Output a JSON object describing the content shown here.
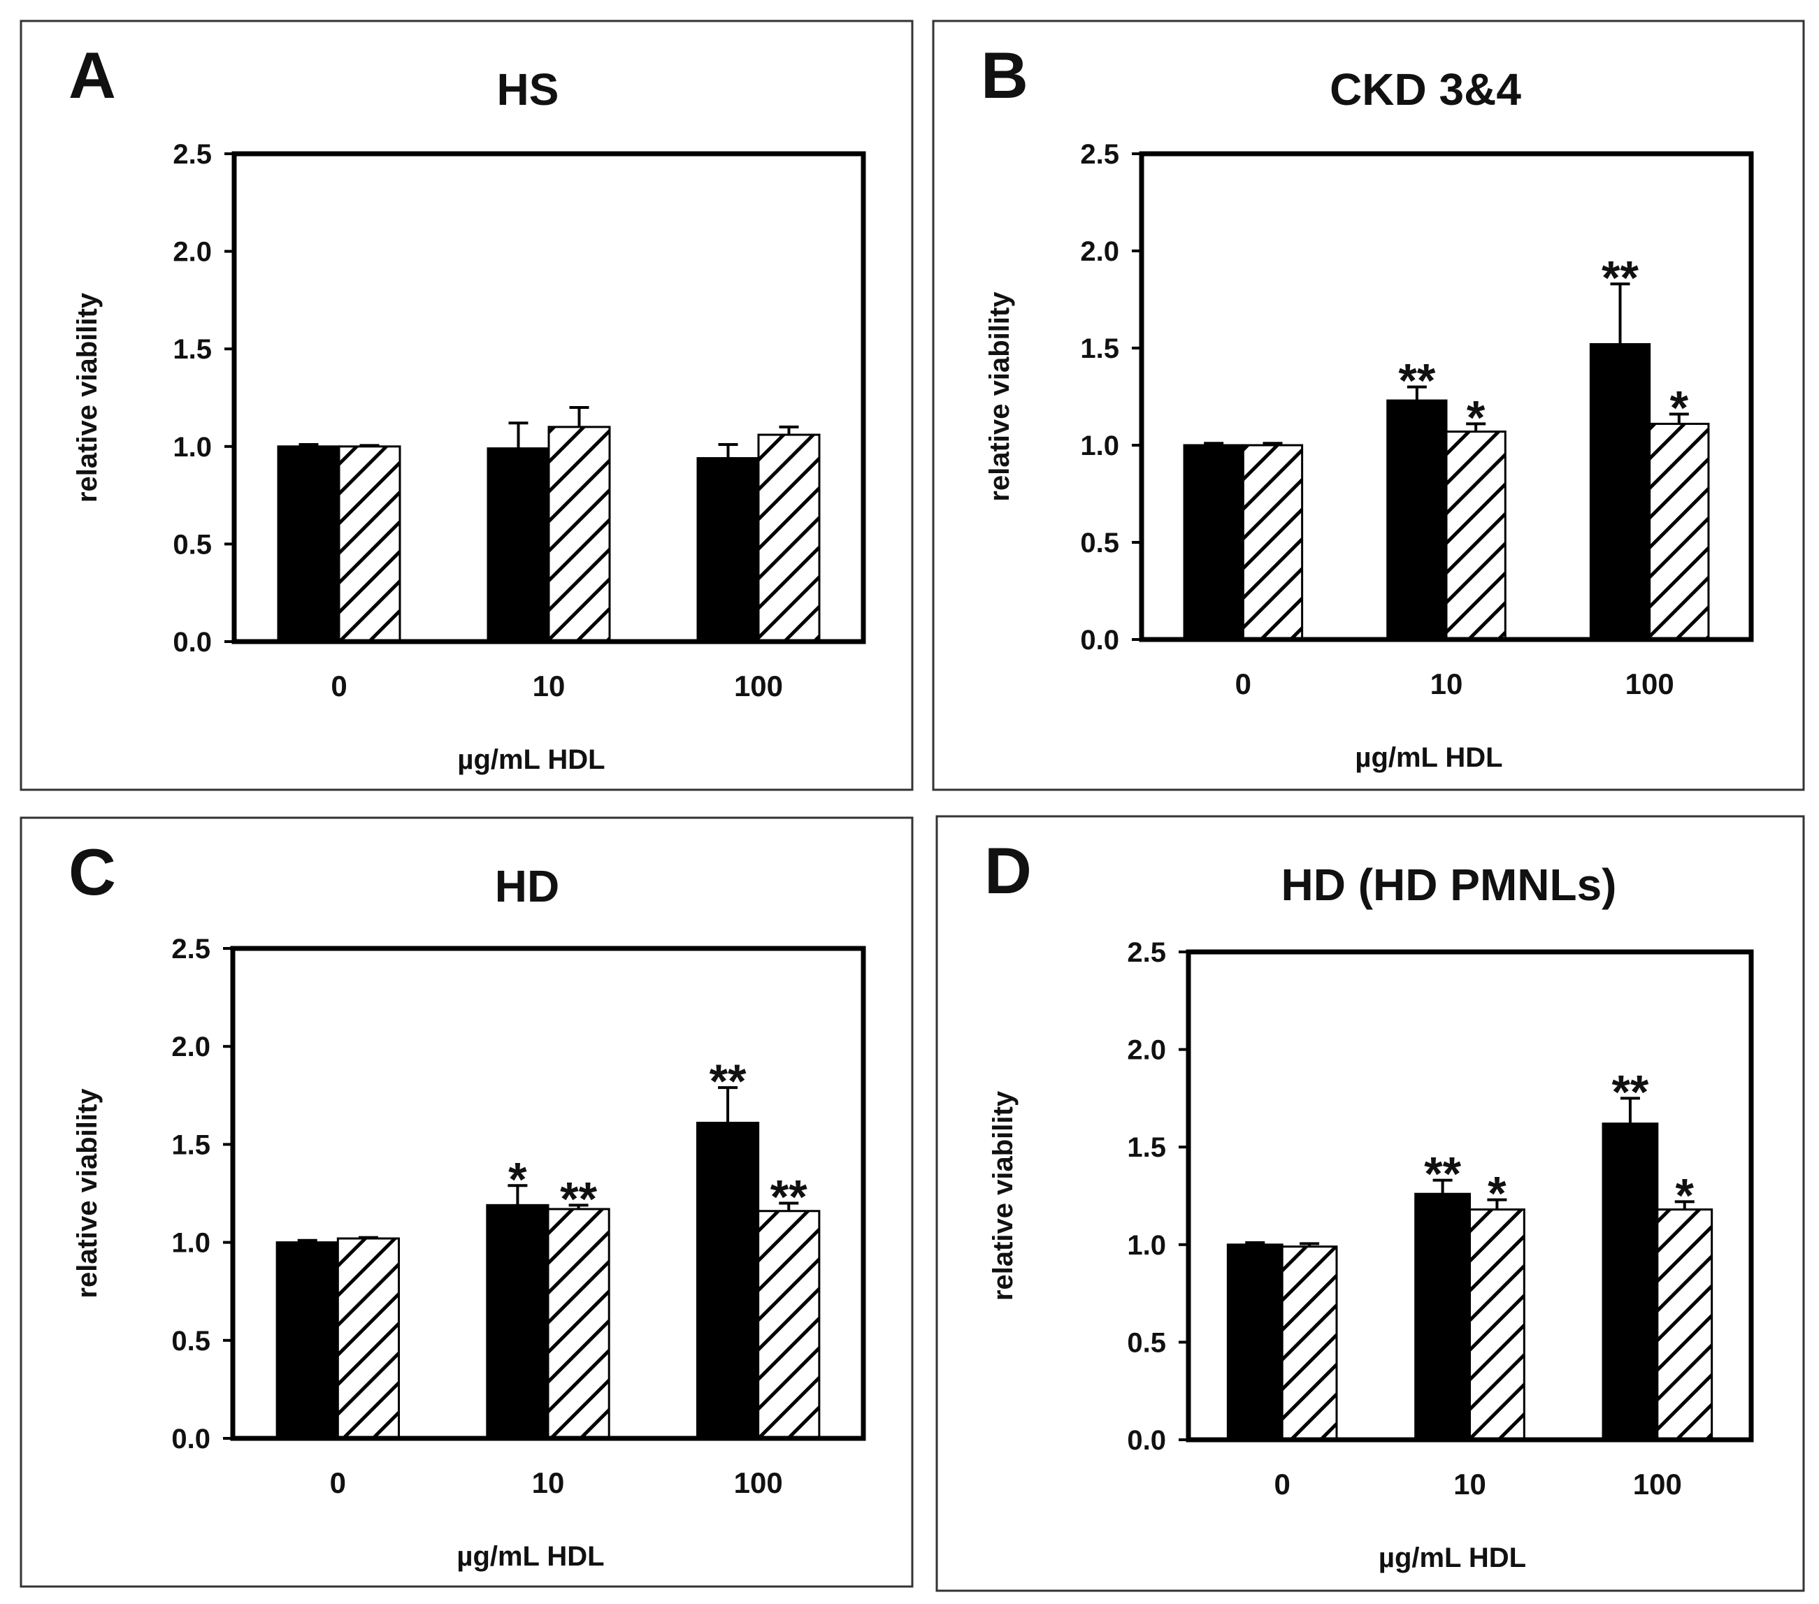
{
  "figure": {
    "colors": {
      "solid_bar": "#000000",
      "hatched_bar": "#ffffff",
      "hatch_line": "#000000",
      "frame": "#333333"
    }
  },
  "chart_data": [
    {
      "type": "bar",
      "panel": "A",
      "title": "HS",
      "xlabel": "µg/mL HDL",
      "ylabel": "relative viability",
      "ylim": [
        0,
        2.5
      ],
      "yticks": [
        "0.0",
        "0.5",
        "1.0",
        "1.5",
        "2.0",
        "2.5"
      ],
      "categories": [
        "0",
        "10",
        "100"
      ],
      "series": [
        {
          "name": "solid",
          "pattern": "solid",
          "values": [
            1.0,
            0.99,
            0.94
          ],
          "errors": [
            0.01,
            0.13,
            0.07
          ],
          "significance": [
            "",
            "",
            ""
          ]
        },
        {
          "name": "hatched",
          "pattern": "hatched",
          "values": [
            1.0,
            1.1,
            1.06
          ],
          "errors": [
            0.005,
            0.1,
            0.04
          ],
          "significance": [
            "",
            "",
            ""
          ]
        }
      ]
    },
    {
      "type": "bar",
      "panel": "B",
      "title": "CKD 3&4",
      "xlabel": "µg/mL HDL",
      "ylabel": "relative viability",
      "ylim": [
        0,
        2.5
      ],
      "yticks": [
        "0.0",
        "0.5",
        "1.0",
        "1.5",
        "2.0",
        "2.5"
      ],
      "categories": [
        "0",
        "10",
        "100"
      ],
      "series": [
        {
          "name": "solid",
          "pattern": "solid",
          "values": [
            1.0,
            1.23,
            1.52
          ],
          "errors": [
            0.01,
            0.07,
            0.31
          ],
          "significance": [
            "",
            "**",
            "**"
          ]
        },
        {
          "name": "hatched",
          "pattern": "hatched",
          "values": [
            1.0,
            1.07,
            1.11
          ],
          "errors": [
            0.01,
            0.04,
            0.05
          ],
          "significance": [
            "",
            "*",
            "*"
          ]
        }
      ]
    },
    {
      "type": "bar",
      "panel": "C",
      "title": "HD",
      "xlabel": "µg/mL HDL",
      "ylabel": "relative viability",
      "ylim": [
        0,
        2.5
      ],
      "yticks": [
        "0.0",
        "0.5",
        "1.0",
        "1.5",
        "2.0",
        "2.5"
      ],
      "categories": [
        "0",
        "10",
        "100"
      ],
      "series": [
        {
          "name": "solid",
          "pattern": "solid",
          "values": [
            1.0,
            1.19,
            1.61
          ],
          "errors": [
            0.01,
            0.1,
            0.18
          ],
          "significance": [
            "",
            "*",
            "**"
          ]
        },
        {
          "name": "hatched",
          "pattern": "hatched",
          "values": [
            1.02,
            1.17,
            1.16
          ],
          "errors": [
            0.005,
            0.02,
            0.04
          ],
          "significance": [
            "",
            "**",
            "**"
          ]
        }
      ]
    },
    {
      "type": "bar",
      "panel": "D",
      "title": "HD (HD PMNLs)",
      "xlabel": "µg/mL HDL",
      "ylabel": "relative viability",
      "ylim": [
        0,
        2.5
      ],
      "yticks": [
        "0.0",
        "0.5",
        "1.0",
        "1.5",
        "2.0",
        "2.5"
      ],
      "categories": [
        "0",
        "10",
        "100"
      ],
      "series": [
        {
          "name": "solid",
          "pattern": "solid",
          "values": [
            1.0,
            1.26,
            1.62
          ],
          "errors": [
            0.01,
            0.07,
            0.13
          ],
          "significance": [
            "",
            "**",
            "**"
          ]
        },
        {
          "name": "hatched",
          "pattern": "hatched",
          "values": [
            0.99,
            1.18,
            1.18
          ],
          "errors": [
            0.015,
            0.05,
            0.04
          ],
          "significance": [
            "",
            "*",
            "*"
          ]
        }
      ]
    }
  ]
}
